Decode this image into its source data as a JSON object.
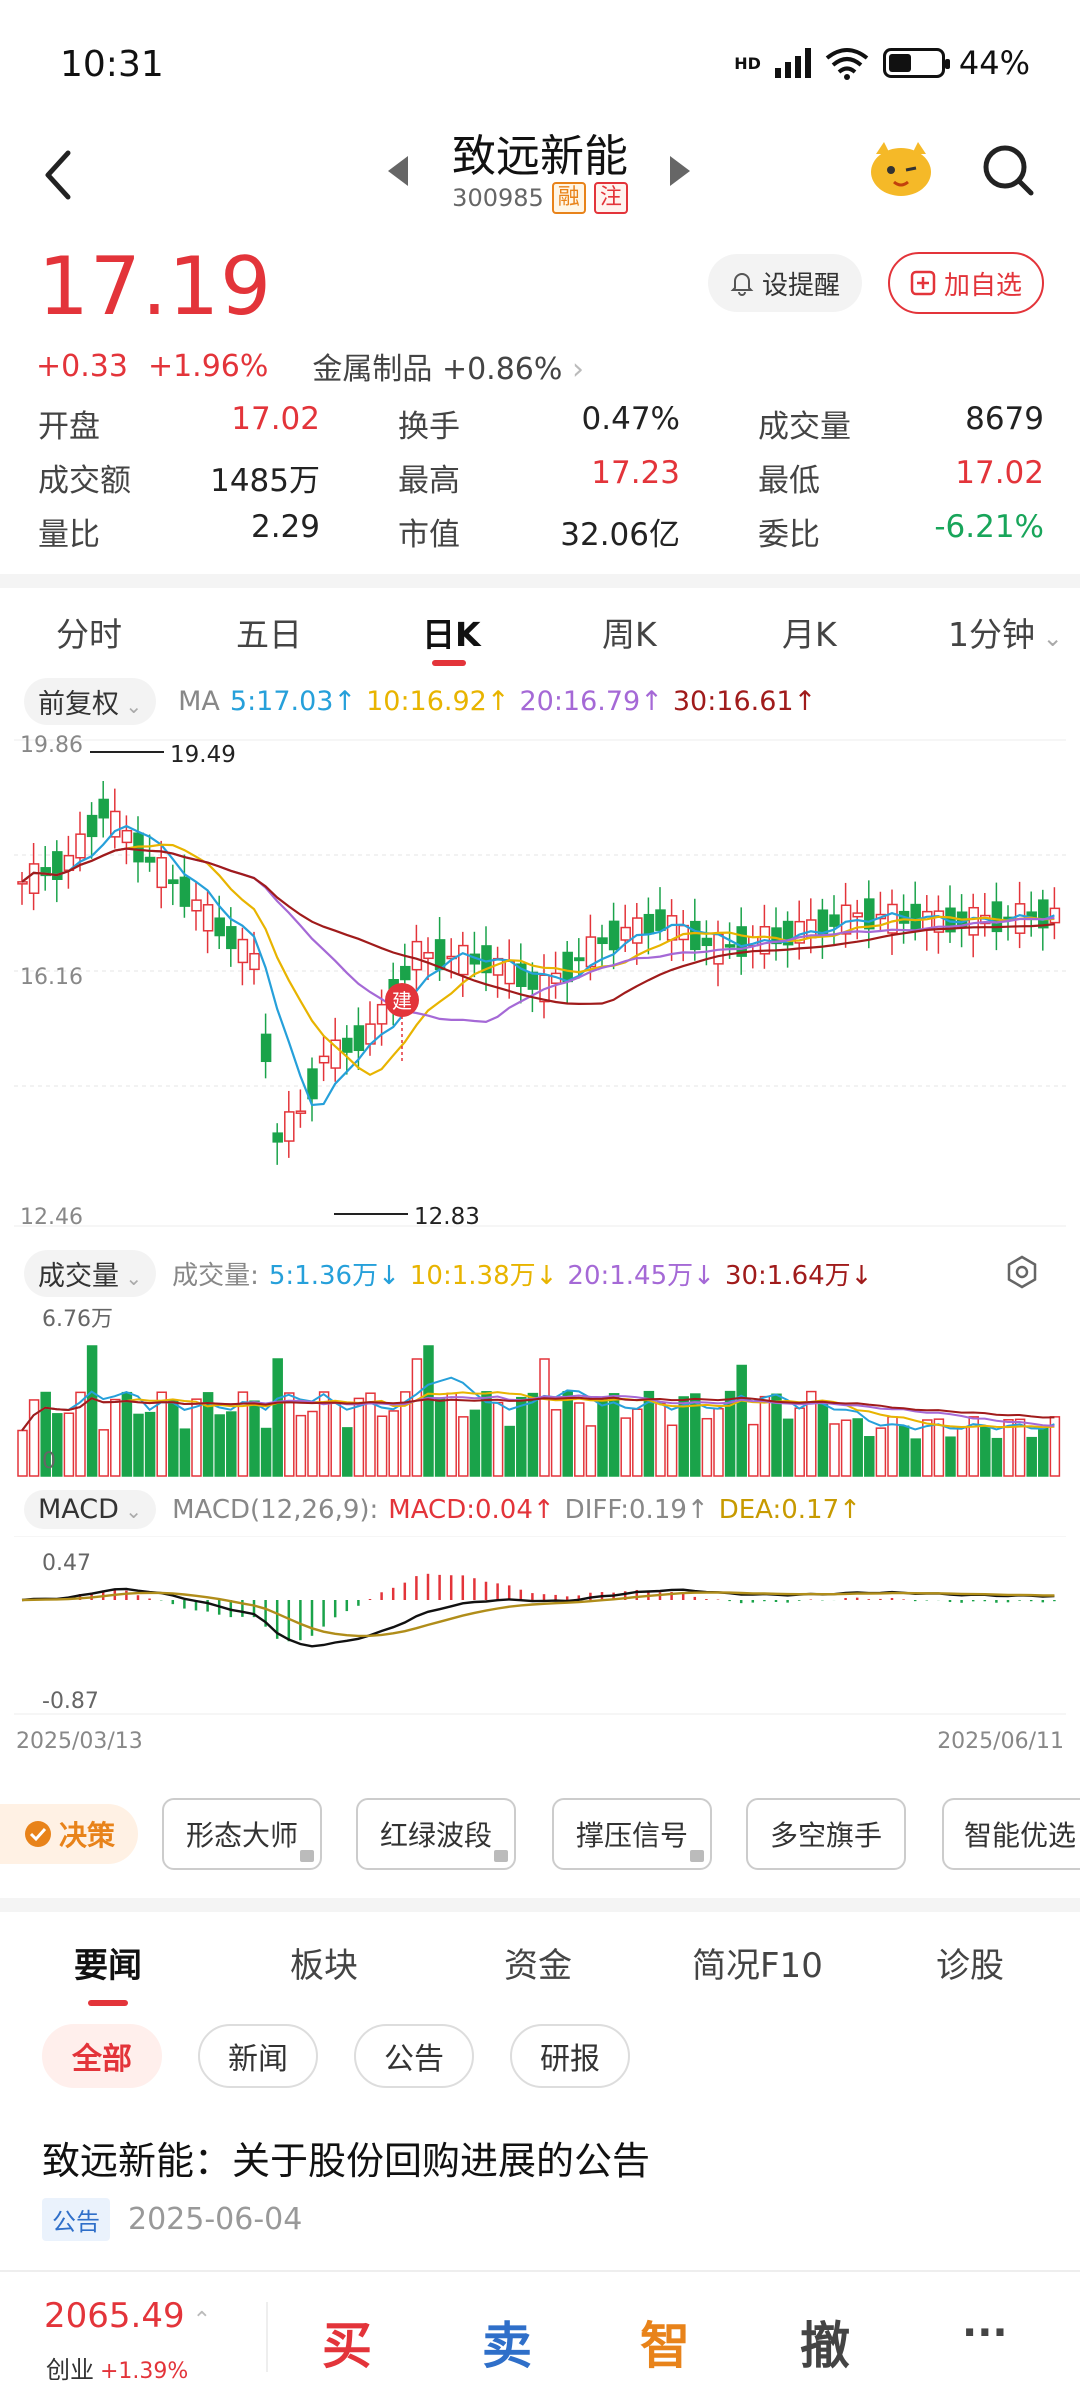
{
  "status_bar": {
    "time": "10:31",
    "network": "HD",
    "battery": "44%"
  },
  "header": {
    "stock_name": "致远新能",
    "stock_code": "300985",
    "tag_margin": "融",
    "tag_note": "注"
  },
  "quote": {
    "price": "17.19",
    "change": "+0.33",
    "change_pct": "+1.96%",
    "industry": "金属制品",
    "industry_pct": "+0.86%",
    "remind_label": "设提醒",
    "add_label": "加自选",
    "grid": [
      [
        {
          "label": "开盘",
          "value": "17.02"
        },
        {
          "label": "换手",
          "value": "0.47%"
        },
        {
          "label": "成交量",
          "value": "8679"
        }
      ],
      [
        {
          "label": "成交额",
          "value": "1485万"
        },
        {
          "label": "最高",
          "value": "17.23"
        },
        {
          "label": "最低",
          "value": "17.02"
        }
      ],
      [
        {
          "label": "量比",
          "value": "2.29"
        },
        {
          "label": "市值",
          "value": "32.06亿"
        },
        {
          "label": "委比",
          "value": "-6.21%"
        }
      ]
    ]
  },
  "period_tabs": [
    "分时",
    "五日",
    "日K",
    "周K",
    "月K",
    "1分钟"
  ],
  "active_period": "日K",
  "ma_bar": {
    "adjust": "前复权",
    "label": "MA",
    "ma5": "5:17.03↑",
    "ma10": "10:16.92↑",
    "ma20": "20:16.79↑",
    "ma30": "30:16.61↑"
  },
  "kline": {
    "y_top": "19.86",
    "y_mid": "16.16",
    "y_bottom": "12.46",
    "high_label": "19.49",
    "low_label": "12.83",
    "marker": "建"
  },
  "volume_bar": {
    "title": "成交量",
    "label": "成交量:",
    "v5": "5:1.36万↓",
    "v10": "10:1.38万↓",
    "v20": "20:1.45万↓",
    "v30": "30:1.64万↓",
    "y_top": "6.76万",
    "y_zero": "0"
  },
  "macd_bar": {
    "title": "MACD",
    "params": "MACD(12,26,9):",
    "macd": "MACD:0.04↑",
    "diff": "DIFF:0.19↑",
    "dea": "DEA:0.17↑",
    "y_top": "0.47",
    "y_bottom": "-0.87",
    "date_start": "2025/03/13",
    "date_end": "2025/06/11"
  },
  "chart_data": {
    "type": "candlestick",
    "x_range": [
      "2025/03/13",
      "2025/06/11"
    ],
    "ylim": [
      12.46,
      19.86
    ],
    "max_price": 19.49,
    "min_price": 12.83,
    "ma_values": {
      "MA5": 17.03,
      "MA10": 16.92,
      "MA20": 16.79,
      "MA30": 16.61
    }
  },
  "tools": {
    "decide": "决策",
    "items": [
      "形态大师",
      "红绿波段",
      "撑压信号",
      "多空旗手",
      "智能优选"
    ]
  },
  "news_tabs": [
    "要闻",
    "板块",
    "资金",
    "简况F10",
    "诊股"
  ],
  "news_filters": [
    "全部",
    "新闻",
    "公告",
    "研报"
  ],
  "news": {
    "title": "致远新能：关于股份回购进展的公告",
    "tag": "公告",
    "date": "2025-06-04"
  },
  "bottom_bar": {
    "index_value": "2065.49",
    "index_name": "创业",
    "index_pct": "+1.39%",
    "buy": "买",
    "sell": "卖",
    "smart": "智",
    "cancel": "撤",
    "more": "···"
  }
}
